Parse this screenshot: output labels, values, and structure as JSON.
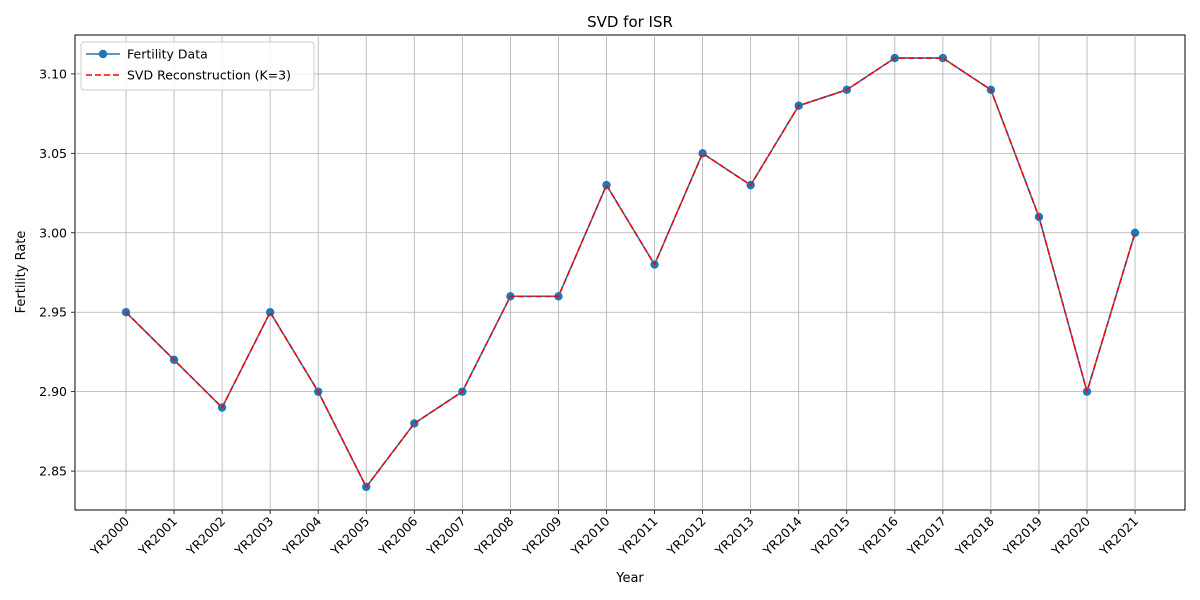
{
  "chart_data": {
    "type": "line",
    "title": "SVD for ISR",
    "xlabel": "Year",
    "ylabel": "Fertility Rate",
    "categories": [
      "YR2000",
      "YR2001",
      "YR2002",
      "YR2003",
      "YR2004",
      "YR2005",
      "YR2006",
      "YR2007",
      "YR2008",
      "YR2009",
      "YR2010",
      "YR2011",
      "YR2012",
      "YR2013",
      "YR2014",
      "YR2015",
      "YR2016",
      "YR2017",
      "YR2018",
      "YR2019",
      "YR2020",
      "YR2021"
    ],
    "ylim": [
      2.8255,
      3.1245
    ],
    "yticks": [
      2.85,
      2.9,
      2.95,
      3.0,
      3.05,
      3.1
    ],
    "ytick_labels": [
      "2.85",
      "2.90",
      "2.95",
      "3.00",
      "3.05",
      "3.10"
    ],
    "grid": true,
    "legend_position": "top-left",
    "series": [
      {
        "name": "Fertility Data",
        "color": "#1f77b4",
        "style": "solid",
        "marker": "circle",
        "values": [
          2.95,
          2.92,
          2.89,
          2.95,
          2.9,
          2.84,
          2.88,
          2.9,
          2.96,
          2.96,
          3.03,
          2.98,
          3.05,
          3.03,
          3.08,
          3.09,
          3.11,
          3.11,
          3.09,
          3.01,
          2.9,
          3.0
        ]
      },
      {
        "name": "SVD Reconstruction (K=3)",
        "color": "#ff0000",
        "style": "dashed",
        "marker": "none",
        "values": [
          2.95,
          2.92,
          2.89,
          2.95,
          2.9,
          2.84,
          2.88,
          2.9,
          2.96,
          2.96,
          3.03,
          2.98,
          3.05,
          3.03,
          3.08,
          3.09,
          3.11,
          3.11,
          3.09,
          3.01,
          2.9,
          3.0
        ]
      }
    ]
  }
}
